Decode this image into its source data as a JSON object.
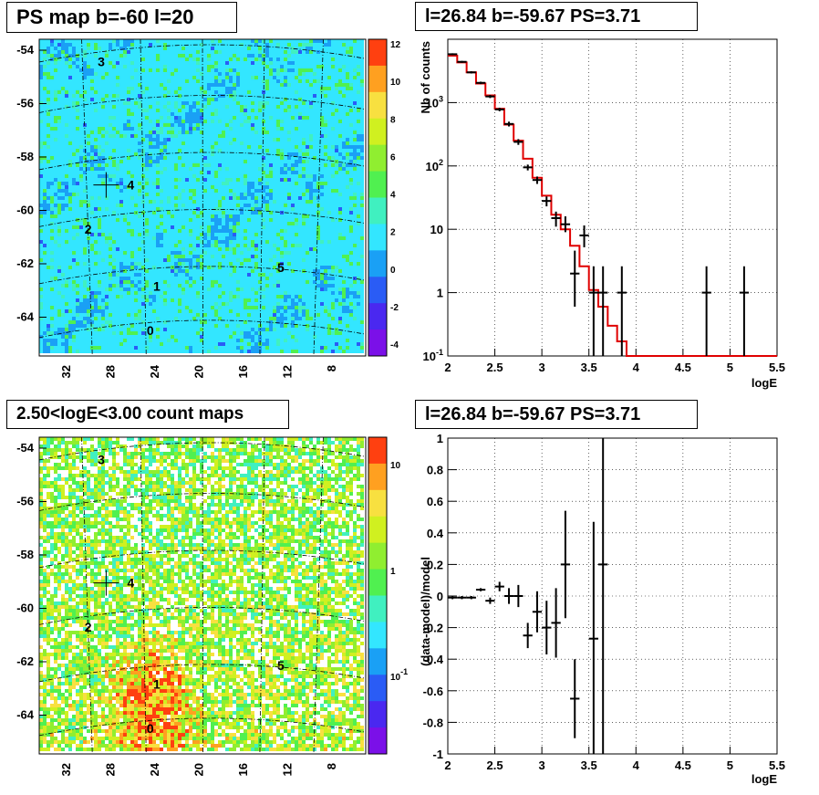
{
  "panels": {
    "tl_title": "PS map b=-60 l=20",
    "tr_title": "l=26.84 b=-59.67 PS=3.71",
    "bl_title": "2.50<logE<3.00 count maps",
    "br_title": "l=26.84 b=-59.67 PS=3.71"
  },
  "colors": {
    "model_line": "#e00000",
    "data_marker": "#000000",
    "map_background_cyan": "#33e6ff"
  },
  "chart_data": [
    {
      "type": "heatmap",
      "title": "PS map b=-60 l=20",
      "x_ticks": [
        "32",
        "28",
        "24",
        "20",
        "16",
        "12",
        "8"
      ],
      "y_ticks": [
        "-54",
        "-56",
        "-58",
        "-60",
        "-62",
        "-64"
      ],
      "colorbar_ticks": [
        "12",
        "10",
        "8",
        "6",
        "4",
        "2",
        "0",
        "-2",
        "-4"
      ],
      "sources": [
        "0",
        "1",
        "2",
        "3",
        "4",
        "5"
      ],
      "marker": "cross at source 4"
    },
    {
      "type": "line",
      "title": "l=26.84 b=-59.67 PS=3.71",
      "xlabel": "logE",
      "ylabel": "Nb of counts",
      "xlim": [
        2,
        5.5
      ],
      "ylim": [
        0.1,
        10000
      ],
      "log_y": true,
      "grid": true,
      "x_ticks": [
        "2",
        "2.5",
        "3",
        "3.5",
        "4",
        "4.5",
        "5",
        "5.5"
      ],
      "y_ticks": [
        "10^-1",
        "1",
        "10",
        "10^2",
        "10^3"
      ],
      "model_steps": {
        "edges": [
          2.0,
          2.1,
          2.2,
          2.3,
          2.4,
          2.5,
          2.6,
          2.7,
          2.8,
          2.9,
          3.0,
          3.1,
          3.2,
          3.3,
          3.4,
          3.5,
          3.6,
          3.7,
          3.8,
          3.9,
          4.0,
          5.5
        ],
        "values": [
          5500,
          4300,
          3000,
          2000,
          1300,
          800,
          450,
          250,
          130,
          65,
          34,
          17,
          10,
          5.5,
          2.6,
          1.1,
          0.6,
          0.3,
          0.17,
          0.1,
          0.1
        ]
      },
      "data_points": [
        {
          "x": 2.05,
          "y": 5800,
          "err": [
            5600,
            6000
          ]
        },
        {
          "x": 2.15,
          "y": 4400,
          "err": [
            4250,
            4550
          ]
        },
        {
          "x": 2.25,
          "y": 3000,
          "err": [
            2880,
            3120
          ]
        },
        {
          "x": 2.35,
          "y": 2050,
          "err": [
            1960,
            2140
          ]
        },
        {
          "x": 2.45,
          "y": 1250,
          "err": [
            1180,
            1320
          ]
        },
        {
          "x": 2.55,
          "y": 780,
          "err": [
            730,
            830
          ]
        },
        {
          "x": 2.65,
          "y": 460,
          "err": [
            420,
            500
          ]
        },
        {
          "x": 2.75,
          "y": 240,
          "err": [
            215,
            265
          ]
        },
        {
          "x": 2.85,
          "y": 95,
          "err": [
            85,
            105
          ]
        },
        {
          "x": 2.95,
          "y": 60,
          "err": [
            52,
            68
          ]
        },
        {
          "x": 3.05,
          "y": 28,
          "err": [
            23,
            33
          ]
        },
        {
          "x": 3.15,
          "y": 15,
          "err": [
            11,
            19
          ]
        },
        {
          "x": 3.25,
          "y": 12,
          "err": [
            9,
            16
          ]
        },
        {
          "x": 3.35,
          "y": 2,
          "err": [
            0.6,
            4.6
          ]
        },
        {
          "x": 3.45,
          "y": 8,
          "err": [
            5.2,
            11.5
          ]
        },
        {
          "x": 3.55,
          "y": 1,
          "err": [
            0.1,
            2.6
          ]
        },
        {
          "x": 3.65,
          "y": 1,
          "err": [
            0.1,
            2.6
          ]
        },
        {
          "x": 3.85,
          "y": 1,
          "err": [
            0.1,
            2.6
          ]
        },
        {
          "x": 4.75,
          "y": 1,
          "err": [
            0.1,
            2.6
          ]
        },
        {
          "x": 5.15,
          "y": 1,
          "err": [
            0.1,
            2.6
          ]
        }
      ]
    },
    {
      "type": "heatmap",
      "title": "2.50<logE<3.00 count maps",
      "x_ticks": [
        "32",
        "28",
        "24",
        "20",
        "16",
        "12",
        "8"
      ],
      "y_ticks": [
        "-54",
        "-56",
        "-58",
        "-60",
        "-62",
        "-64"
      ],
      "colorbar_ticks": [
        "10",
        "1",
        "10^-1"
      ],
      "log_scale": true,
      "sources": [
        "0",
        "1",
        "2",
        "3",
        "4",
        "5"
      ],
      "marker": "cross at source 4"
    },
    {
      "type": "scatter",
      "title": "l=26.84 b=-59.67 PS=3.71",
      "xlabel": "logE",
      "ylabel": "(data-model)/model",
      "xlim": [
        2,
        5.5
      ],
      "ylim": [
        -1,
        1
      ],
      "grid": true,
      "x_ticks": [
        "2",
        "2.5",
        "3",
        "3.5",
        "4",
        "4.5",
        "5",
        "5.5"
      ],
      "y_ticks": [
        "1",
        "0.8",
        "0.6",
        "0.4",
        "0.2",
        "0",
        "-0.2",
        "-0.4",
        "-0.6",
        "-0.8",
        "-1"
      ],
      "points": [
        {
          "x": 2.05,
          "y": -0.01,
          "err": 0.01
        },
        {
          "x": 2.15,
          "y": -0.01,
          "err": 0.01
        },
        {
          "x": 2.25,
          "y": -0.01,
          "err": 0.01
        },
        {
          "x": 2.35,
          "y": 0.04,
          "err": 0.01
        },
        {
          "x": 2.45,
          "y": -0.03,
          "err": 0.02
        },
        {
          "x": 2.55,
          "y": 0.06,
          "err": 0.03
        },
        {
          "x": 2.65,
          "y": 0.0,
          "err": 0.05
        },
        {
          "x": 2.75,
          "y": 0.0,
          "err": 0.07
        },
        {
          "x": 2.85,
          "y": -0.25,
          "err": 0.08
        },
        {
          "x": 2.95,
          "y": -0.1,
          "err": 0.13
        },
        {
          "x": 3.05,
          "y": -0.2,
          "err": 0.17
        },
        {
          "x": 3.15,
          "y": -0.17,
          "err": 0.22
        },
        {
          "x": 3.25,
          "y": 0.2,
          "err": 0.34
        },
        {
          "x": 3.35,
          "y": -0.65,
          "err": 0.25
        },
        {
          "x": 3.55,
          "y": -0.27,
          "err": 0.74
        },
        {
          "x": 3.65,
          "y": 0.2,
          "err": 1.2
        }
      ]
    }
  ]
}
